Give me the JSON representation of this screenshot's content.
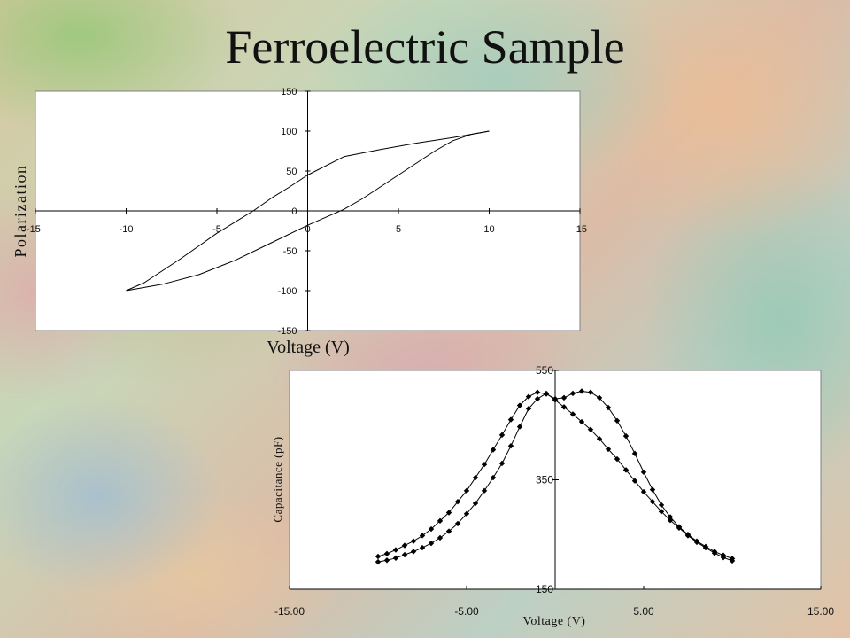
{
  "page": {
    "title": "Ferroelectric Sample"
  },
  "chart_data": [
    {
      "type": "line",
      "xlabel": "Voltage (V)",
      "ylabel": "Polarization",
      "xlim": [
        -15,
        15
      ],
      "ylim": [
        -150,
        150
      ],
      "xticks": [
        -15,
        -10,
        -5,
        0,
        5,
        10,
        15
      ],
      "yticks": [
        150,
        100,
        50,
        0,
        -50,
        -100,
        -150
      ],
      "xtick_labels": [
        "-15",
        "-10",
        "-5",
        "0",
        "5",
        "10",
        "15"
      ],
      "ytick_labels": [
        "150",
        "100",
        "50",
        "0",
        "-50",
        "-100",
        "-150"
      ],
      "grid": false,
      "series": [
        {
          "values": [
            {
              "x": -10,
              "y": -100
            },
            {
              "x": -8,
              "y": -92
            },
            {
              "x": -6,
              "y": -80
            },
            {
              "x": -4,
              "y": -62
            },
            {
              "x": -2,
              "y": -40
            },
            {
              "x": 0,
              "y": -18
            },
            {
              "x": 1,
              "y": -8
            },
            {
              "x": 2,
              "y": 2
            },
            {
              "x": 3,
              "y": 15
            },
            {
              "x": 4,
              "y": 30
            },
            {
              "x": 5,
              "y": 45
            },
            {
              "x": 6,
              "y": 60
            },
            {
              "x": 7,
              "y": 75
            },
            {
              "x": 8,
              "y": 88
            },
            {
              "x": 9,
              "y": 96
            },
            {
              "x": 10,
              "y": 100
            }
          ]
        },
        {
          "values": [
            {
              "x": 10,
              "y": 100
            },
            {
              "x": 8,
              "y": 92
            },
            {
              "x": 6,
              "y": 85
            },
            {
              "x": 4,
              "y": 77
            },
            {
              "x": 2,
              "y": 68
            },
            {
              "x": 0,
              "y": 45
            },
            {
              "x": -1,
              "y": 30
            },
            {
              "x": -2,
              "y": 16
            },
            {
              "x": -3,
              "y": 0
            },
            {
              "x": -4,
              "y": -14
            },
            {
              "x": -5,
              "y": -28
            },
            {
              "x": -6,
              "y": -44
            },
            {
              "x": -7,
              "y": -60
            },
            {
              "x": -8,
              "y": -75
            },
            {
              "x": -9,
              "y": -90
            },
            {
              "x": -10,
              "y": -100
            }
          ]
        }
      ]
    },
    {
      "type": "line",
      "xlabel": "Voltage (V)",
      "ylabel": "Capacitance (pF)",
      "xlim": [
        -15,
        15
      ],
      "ylim": [
        150,
        550
      ],
      "xticks": [
        -15,
        -5,
        5,
        15
      ],
      "yticks": [
        550,
        350,
        150
      ],
      "xtick_labels": [
        "-15.00",
        "-5.00",
        "5.00",
        "15.00"
      ],
      "ytick_labels": [
        "550",
        "350",
        "150"
      ],
      "marker": "diamond",
      "grid": false,
      "series": [
        {
          "values": [
            {
              "x": -10,
              "y": 200
            },
            {
              "x": -9.5,
              "y": 203
            },
            {
              "x": -9,
              "y": 207
            },
            {
              "x": -8.5,
              "y": 213
            },
            {
              "x": -8,
              "y": 219
            },
            {
              "x": -7.5,
              "y": 226
            },
            {
              "x": -7,
              "y": 234
            },
            {
              "x": -6.5,
              "y": 244
            },
            {
              "x": -6,
              "y": 256
            },
            {
              "x": -5.5,
              "y": 270
            },
            {
              "x": -5,
              "y": 288
            },
            {
              "x": -4.5,
              "y": 307
            },
            {
              "x": -4,
              "y": 330
            },
            {
              "x": -3.5,
              "y": 354
            },
            {
              "x": -3,
              "y": 380
            },
            {
              "x": -2.5,
              "y": 412
            },
            {
              "x": -2,
              "y": 447
            },
            {
              "x": -1.5,
              "y": 480
            },
            {
              "x": -1,
              "y": 498
            },
            {
              "x": -0.5,
              "y": 508
            },
            {
              "x": 0,
              "y": 496
            },
            {
              "x": 0.5,
              "y": 483
            },
            {
              "x": 1,
              "y": 470
            },
            {
              "x": 1.5,
              "y": 456
            },
            {
              "x": 2,
              "y": 442
            },
            {
              "x": 2.5,
              "y": 425
            },
            {
              "x": 3,
              "y": 406
            },
            {
              "x": 3.5,
              "y": 388
            },
            {
              "x": 4,
              "y": 368
            },
            {
              "x": 4.5,
              "y": 348
            },
            {
              "x": 5,
              "y": 328
            },
            {
              "x": 5.5,
              "y": 310
            },
            {
              "x": 6,
              "y": 292
            },
            {
              "x": 6.5,
              "y": 276
            },
            {
              "x": 7,
              "y": 262
            },
            {
              "x": 7.5,
              "y": 248
            },
            {
              "x": 8,
              "y": 236
            },
            {
              "x": 8.5,
              "y": 226
            },
            {
              "x": 9,
              "y": 216
            },
            {
              "x": 9.5,
              "y": 208
            },
            {
              "x": 10,
              "y": 202
            }
          ]
        },
        {
          "values": [
            {
              "x": -10,
              "y": 210
            },
            {
              "x": -9.5,
              "y": 215
            },
            {
              "x": -9,
              "y": 222
            },
            {
              "x": -8.5,
              "y": 230
            },
            {
              "x": -8,
              "y": 238
            },
            {
              "x": -7.5,
              "y": 248
            },
            {
              "x": -7,
              "y": 260
            },
            {
              "x": -6.5,
              "y": 275
            },
            {
              "x": -6,
              "y": 290
            },
            {
              "x": -5.5,
              "y": 310
            },
            {
              "x": -5,
              "y": 330
            },
            {
              "x": -4.5,
              "y": 354
            },
            {
              "x": -4,
              "y": 378
            },
            {
              "x": -3.5,
              "y": 405
            },
            {
              "x": -3,
              "y": 432
            },
            {
              "x": -2.5,
              "y": 460
            },
            {
              "x": -2,
              "y": 486
            },
            {
              "x": -1.5,
              "y": 502
            },
            {
              "x": -1,
              "y": 510
            },
            {
              "x": -0.5,
              "y": 507
            },
            {
              "x": 0,
              "y": 498
            },
            {
              "x": 0.5,
              "y": 500
            },
            {
              "x": 1,
              "y": 508
            },
            {
              "x": 1.5,
              "y": 512
            },
            {
              "x": 2,
              "y": 510
            },
            {
              "x": 2.5,
              "y": 500
            },
            {
              "x": 3,
              "y": 482
            },
            {
              "x": 3.5,
              "y": 458
            },
            {
              "x": 4,
              "y": 430
            },
            {
              "x": 4.5,
              "y": 398
            },
            {
              "x": 5,
              "y": 364
            },
            {
              "x": 5.5,
              "y": 332
            },
            {
              "x": 6,
              "y": 304
            },
            {
              "x": 6.5,
              "y": 282
            },
            {
              "x": 7,
              "y": 264
            },
            {
              "x": 7.5,
              "y": 250
            },
            {
              "x": 8,
              "y": 238
            },
            {
              "x": 8.5,
              "y": 228
            },
            {
              "x": 9,
              "y": 219
            },
            {
              "x": 9.5,
              "y": 212
            },
            {
              "x": 10,
              "y": 206
            }
          ]
        }
      ]
    }
  ]
}
